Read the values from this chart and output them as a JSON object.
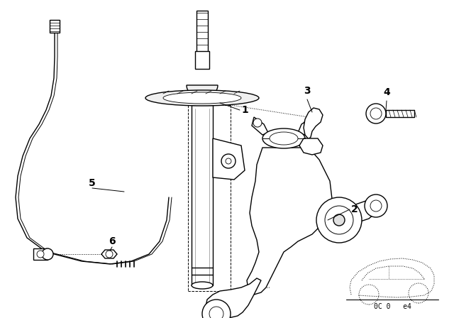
{
  "background_color": "#ffffff",
  "line_color": "#000000",
  "fig_width": 6.4,
  "fig_height": 4.48,
  "dpi": 100,
  "footer_text": "0C 0   e4"
}
